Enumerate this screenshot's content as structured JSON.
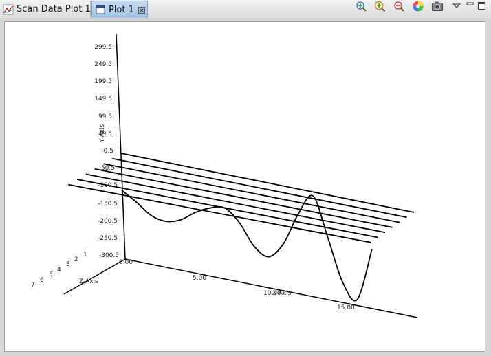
{
  "tabs": [
    {
      "label": "Scan Data Plot 1"
    },
    {
      "label": "Plot 1"
    }
  ],
  "toolbar": {
    "icons": [
      "zoom-fit-icon",
      "zoom-in-icon",
      "zoom-out-icon",
      "color-wheel-icon",
      "camera-icon",
      "view-menu-icon",
      "minimize-icon",
      "maximize-icon"
    ]
  },
  "plot": {
    "y_axis_title": "Y-Axis",
    "x_axis_title": "X-Axis",
    "z_axis_title": "Z-Axis",
    "y_ticks": [
      "299.5",
      "249.5",
      "199.5",
      "149.5",
      "99.5",
      "49.5",
      "-0.5",
      "-50.5",
      "-100.5",
      "-150.5",
      "-200.5",
      "-250.5",
      "-300.5"
    ],
    "x_ticks": [
      "0.00",
      "5.00",
      "10.00",
      "15.00"
    ],
    "z_ticks": [
      "1",
      "2",
      "3",
      "4",
      "5",
      "6",
      "7"
    ]
  },
  "chart_data": {
    "type": "line",
    "title": "",
    "xlabel": "X-Axis",
    "ylabel": "Y-Axis",
    "zlabel": "Z-Axis",
    "ylim": [
      -300.5,
      299.5
    ],
    "x": [
      0,
      1,
      2,
      3,
      4,
      5,
      6,
      7,
      8,
      9,
      10,
      11,
      12,
      13,
      14,
      15,
      16,
      17
    ],
    "series": [
      {
        "values": [
          -100,
          -130,
          -165,
          -175,
          -160,
          -125,
          -100,
          -90,
          -130,
          -200,
          -225,
          -170,
          -60,
          10,
          -120,
          -260,
          -310,
          -130
        ]
      }
    ],
    "flat_lines_count": 7
  }
}
